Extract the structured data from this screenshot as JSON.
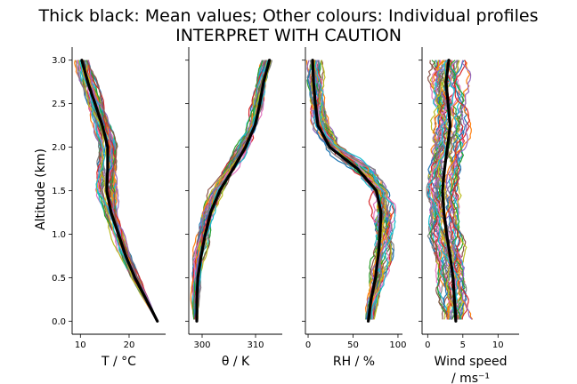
{
  "figure": {
    "title_line1": "Thick black: Mean values; Other colours: Individual profiles",
    "title_line2": "INTERPRET WITH CAUTION",
    "ylabel": "Altitude (km)"
  },
  "chart_data": [
    {
      "type": "line",
      "xlabel": "T / °C",
      "xlabel_line2": "",
      "xlim": [
        8.3,
        27.5
      ],
      "ylim": [
        -0.15,
        3.15
      ],
      "xticks": [
        10,
        20
      ],
      "yticks": [
        0.0,
        0.5,
        1.0,
        1.5,
        2.0,
        2.5,
        3.0
      ],
      "ytick_labels": [
        "0.0",
        "0.5",
        "1.0",
        "1.5",
        "2.0",
        "2.5",
        "3.0"
      ],
      "show_ytick_labels": true,
      "altitude_km": [
        0.0,
        0.25,
        0.5,
        0.75,
        1.0,
        1.25,
        1.5,
        1.75,
        2.0,
        2.25,
        2.5,
        2.75,
        3.0
      ],
      "mean": [
        25.8,
        23.5,
        21.2,
        19.3,
        17.8,
        16.3,
        15.4,
        15.6,
        15.6,
        14.5,
        13.0,
        11.5,
        10.3
      ],
      "profile_spread": [
        0.0,
        0.4,
        0.7,
        0.9,
        1.0,
        1.1,
        1.5,
        1.5,
        1.3,
        1.2,
        1.2,
        1.2,
        1.2
      ],
      "series_count": 40
    },
    {
      "type": "line",
      "xlabel": "θ / K",
      "xlabel_line2": "",
      "xlim": [
        297.5,
        315.0
      ],
      "ylim": [
        -0.15,
        3.15
      ],
      "xticks": [
        300,
        310
      ],
      "yticks": [
        0.0,
        0.5,
        1.0,
        1.5,
        2.0,
        2.5,
        3.0
      ],
      "ytick_labels": [
        "",
        "",
        "",
        "",
        "",
        "",
        ""
      ],
      "show_ytick_labels": false,
      "altitude_km": [
        0.0,
        0.25,
        0.5,
        0.75,
        1.0,
        1.25,
        1.5,
        1.75,
        2.0,
        2.25,
        2.5,
        2.75,
        3.0
      ],
      "mean": [
        299.0,
        299.0,
        299.2,
        299.8,
        300.6,
        301.6,
        303.3,
        305.8,
        308.1,
        309.9,
        310.8,
        311.5,
        312.6
      ],
      "profile_spread": [
        0.4,
        0.6,
        0.8,
        1.0,
        1.2,
        1.4,
        1.6,
        1.6,
        1.4,
        1.2,
        1.1,
        1.0,
        0.9
      ],
      "series_count": 40
    },
    {
      "type": "line",
      "xlabel": "RH / %",
      "xlabel_line2": "",
      "xlim": [
        -3,
        105
      ],
      "ylim": [
        -0.15,
        3.15
      ],
      "xticks": [
        0,
        50,
        100
      ],
      "yticks": [
        0.0,
        0.5,
        1.0,
        1.5,
        2.0,
        2.5,
        3.0
      ],
      "ytick_labels": [
        "",
        "",
        "",
        "",
        "",
        "",
        ""
      ],
      "show_ytick_labels": false,
      "altitude_km": [
        0.0,
        0.25,
        0.5,
        0.75,
        1.0,
        1.25,
        1.5,
        1.75,
        2.0,
        2.25,
        2.5,
        2.75,
        3.0
      ],
      "mean": [
        67,
        70,
        75,
        78,
        80,
        81,
        76,
        55,
        24,
        11,
        8,
        6,
        5
      ],
      "profile_spread": [
        4,
        6,
        8,
        10,
        12,
        12,
        14,
        16,
        14,
        10,
        9,
        8,
        7
      ],
      "series_count": 40
    },
    {
      "type": "line",
      "xlabel": "Wind speed",
      "xlabel_line2": "/ ms⁻¹",
      "xlim": [
        -0.8,
        13.0
      ],
      "ylim": [
        -0.15,
        3.15
      ],
      "xticks": [
        0,
        5,
        10
      ],
      "yticks": [
        0.0,
        0.5,
        1.0,
        1.5,
        2.0,
        2.5,
        3.0
      ],
      "ytick_labels": [
        "",
        "",
        "",
        "",
        "",
        "",
        ""
      ],
      "show_ytick_labels": false,
      "altitude_km": [
        0.0,
        0.25,
        0.5,
        0.75,
        1.0,
        1.25,
        1.5,
        1.75,
        2.0,
        2.25,
        2.5,
        2.75,
        3.0
      ],
      "mean": [
        4.0,
        3.8,
        3.6,
        3.2,
        2.7,
        2.3,
        2.1,
        2.4,
        2.8,
        3.2,
        2.9,
        2.6,
        3.0
      ],
      "profile_spread": [
        1.4,
        1.6,
        1.6,
        1.6,
        1.6,
        1.6,
        1.6,
        1.7,
        1.8,
        1.9,
        1.9,
        1.9,
        1.9
      ],
      "series_count": 40
    }
  ]
}
